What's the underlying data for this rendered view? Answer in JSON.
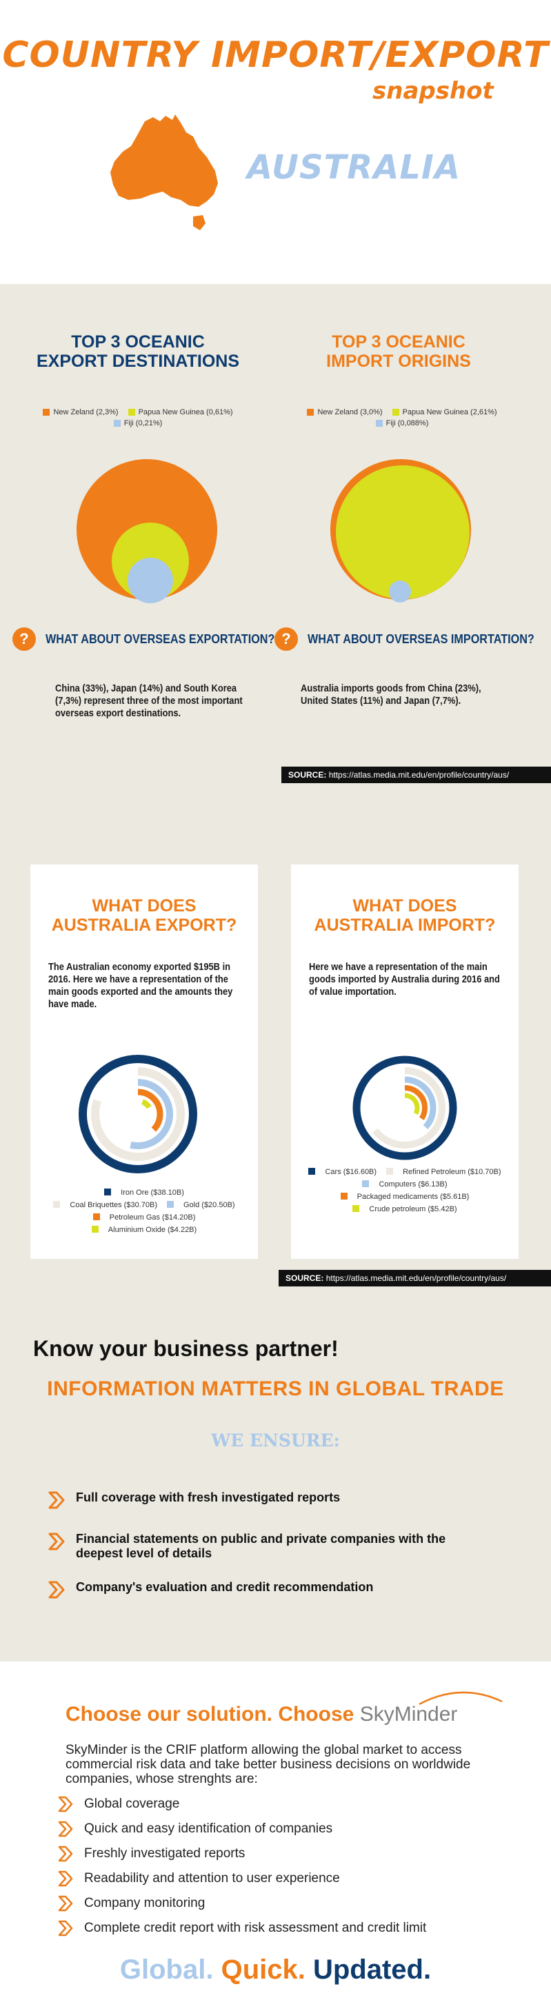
{
  "header": {
    "title": "COUNTRY IMPORT/EXPORT",
    "subtitle": "snapshot",
    "country": "AUSTRALIA"
  },
  "colors": {
    "orange": "#ee7d1a",
    "navy": "#0d3b6e",
    "light_blue": "#a9c8ea",
    "yellow": "#d8df1e",
    "pale": "#ede8e0",
    "beige_band": "#ece9e0"
  },
  "oceanic": {
    "export": {
      "title_line1": "TOP 3 OCEANIC",
      "title_line2": "EXPORT DESTINATIONS",
      "legend": [
        {
          "label": "New Zeland (2,3%)",
          "color": "#ee7d1a"
        },
        {
          "label": "Papua New Guinea (0,61%)",
          "color": "#d8df1e"
        },
        {
          "label": "Fiji (0,21%)",
          "color": "#a9c8ea"
        }
      ]
    },
    "import": {
      "title_line1": "TOP 3 OCEANIC",
      "title_line2": "IMPORT ORIGINS",
      "legend": [
        {
          "label": "New Zeland (3,0%)",
          "color": "#ee7d1a"
        },
        {
          "label": "Papua New Guinea (2,61%)",
          "color": "#d8df1e"
        },
        {
          "label": "Fiji (0,088%)",
          "color": "#a9c8ea"
        }
      ]
    }
  },
  "overseas": {
    "export_question": "WHAT ABOUT OVERSEAS EXPORTATION?",
    "export_text": "China (33%), Japan (14%) and South Korea (7,3%) represent three of the most important overseas export destinations.",
    "import_question": "WHAT ABOUT OVERSEAS IMPORTATION?",
    "import_text": "Australia imports goods from China (23%), United States (11%) and Japan (7,7%).",
    "source_label": "SOURCE:",
    "source_url": "https://atlas.media.mit.edu/en/profile/country/aus/"
  },
  "goods": {
    "export": {
      "title_line1": "WHAT DOES",
      "title_line2": "AUSTRALIA EXPORT?",
      "text": "The Australian economy exported $195B in 2016. Here we have a representation of the main goods exported and the amounts they have made.",
      "legend": [
        {
          "label": "Iron Ore ($38.10B)",
          "color": "#0d3b6e"
        },
        {
          "label": "Coal Briquettes ($30.70B)",
          "color": "#ede8e0"
        },
        {
          "label": "Gold ($20.50B)",
          "color": "#a9c8ea"
        },
        {
          "label": "Petroleum Gas ($14.20B)",
          "color": "#ee7d1a"
        },
        {
          "label": "Aluminium Oxide ($4.22B)",
          "color": "#d8df1e"
        }
      ]
    },
    "import": {
      "title_line1": "WHAT DOES",
      "title_line2": "AUSTRALIA IMPORT?",
      "text": "Here we have a representation of the main goods imported by Australia during 2016 and of value importation.",
      "legend": [
        {
          "label": "Cars ($16.60B)",
          "color": "#0d3b6e"
        },
        {
          "label": "Refined Petroleum ($10.70B)",
          "color": "#ede8e0"
        },
        {
          "label": "Computers ($6.13B)",
          "color": "#a9c8ea"
        },
        {
          "label": "Packaged medicaments ($5.61B)",
          "color": "#ee7d1a"
        },
        {
          "label": "Crude petroleum ($5.42B)",
          "color": "#d8df1e"
        }
      ]
    },
    "source_label": "SOURCE:",
    "source_url": "https://atlas.media.mit.edu/en/profile/country/aus/"
  },
  "partner": {
    "heading": "Know your business partner!",
    "subheading": "INFORMATION MATTERS IN GLOBAL TRADE",
    "ensure_heading": "WE ENSURE:",
    "items": [
      "Full coverage with fresh investigated reports",
      "Financial statements on public and private companies with the deepest level of details",
      "Company's evaluation and credit recommendation"
    ]
  },
  "solution": {
    "heading": "Choose our solution. Choose",
    "brand": "SkyMinder",
    "description": "SkyMinder is the CRIF platform allowing the global market to access commercial risk data and take better business decisions on worldwide companies, whose strenghts are:",
    "items": [
      "Global coverage",
      "Quick and easy identification of companies",
      "Freshly investigated reports",
      "Readability and attention to user experience",
      "Company monitoring",
      "Complete credit report with risk assessment and credit limit"
    ]
  },
  "tagline": {
    "part1": "Global.",
    "part2": "Quick.",
    "part3": "Updated."
  }
}
